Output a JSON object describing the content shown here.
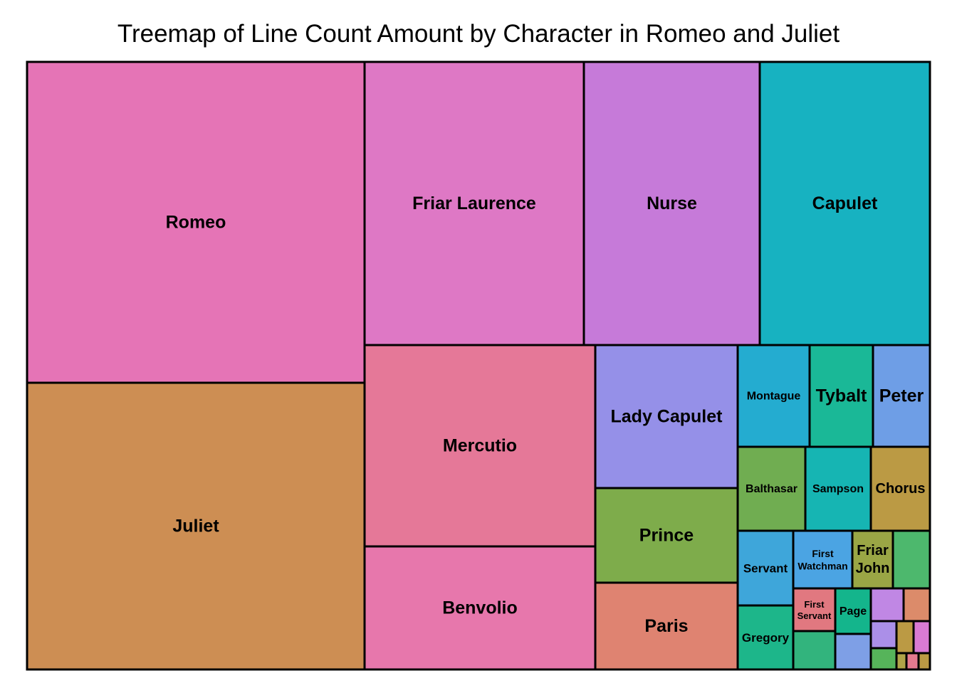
{
  "chart_data": {
    "type": "treemap",
    "title": "Treemap of Line Count Amount by Character in Romeo and Juliet",
    "cells": [
      {
        "name": "Romeo",
        "label": "Romeo",
        "value": 614,
        "color": "#e574b6"
      },
      {
        "name": "Juliet",
        "label": "Juliet",
        "value": 544,
        "color": "#cd8e53"
      },
      {
        "name": "Friar Laurence",
        "label": "Friar Laurence",
        "value": 351,
        "color": "#de78c5"
      },
      {
        "name": "Nurse",
        "label": "Nurse",
        "value": 281,
        "color": "#c67ad9"
      },
      {
        "name": "Capulet",
        "label": "Capulet",
        "value": 274,
        "color": "#17b2c1"
      },
      {
        "name": "Mercutio",
        "label": "Mercutio",
        "value": 261,
        "color": "#e57898"
      },
      {
        "name": "Benvolio",
        "label": "Benvolio",
        "value": 160,
        "color": "#e777ac"
      },
      {
        "name": "Lady Capulet",
        "label": "Lady Capulet",
        "value": 115,
        "color": "#9590e8"
      },
      {
        "name": "Prince",
        "label": "Prince",
        "value": 75,
        "color": "#7eac4b"
      },
      {
        "name": "Paris",
        "label": "Paris",
        "value": 71,
        "color": "#df8371"
      },
      {
        "name": "Montague",
        "label": "Montague",
        "value": 41,
        "color": "#24acd0"
      },
      {
        "name": "Tybalt",
        "label": "Tybalt",
        "value": 36,
        "color": "#1ab897"
      },
      {
        "name": "Peter",
        "label": "Peter",
        "value": 32,
        "color": "#6e9ee6"
      },
      {
        "name": "Balthasar",
        "label": "Balthasar",
        "value": 32,
        "color": "#70ad51"
      },
      {
        "name": "Sampson",
        "label": "Sampson",
        "value": 31,
        "color": "#16b5b3"
      },
      {
        "name": "Chorus",
        "label": "Chorus",
        "value": 28,
        "color": "#bb9a44"
      },
      {
        "name": "Servant",
        "label": "Servant",
        "value": 22,
        "color": "#3ea6da"
      },
      {
        "name": "Gregory",
        "label": "Gregory",
        "value": 20,
        "color": "#1db68a"
      },
      {
        "name": "First Watchman",
        "label": "First Watchman",
        "value": 20,
        "color": "#4ba4e3"
      },
      {
        "name": "Friar John",
        "label": "Friar John",
        "value": 13,
        "color": "#9aa645"
      },
      {
        "name": "small-cell-1",
        "label": "",
        "value": 11,
        "color": "#4db86d"
      },
      {
        "name": "First Servant",
        "label": "First Servant",
        "value": 9,
        "color": "#e17880"
      },
      {
        "name": "Page",
        "label": "Page",
        "value": 9,
        "color": "#14b58c"
      },
      {
        "name": "small-cell-2",
        "label": "",
        "value": 7,
        "color": "#32b47d"
      },
      {
        "name": "small-cell-3",
        "label": "",
        "value": 5,
        "color": "#7e9fe6"
      },
      {
        "name": "small-cell-4",
        "label": "",
        "value": 4,
        "color": "#c087e4"
      },
      {
        "name": "small-cell-5",
        "label": "",
        "value": 3,
        "color": "#dc8b6a"
      },
      {
        "name": "small-cell-6",
        "label": "",
        "value": 3,
        "color": "#ab8fe8"
      },
      {
        "name": "small-cell-7",
        "label": "",
        "value": 2,
        "color": "#56b45a"
      },
      {
        "name": "small-cell-8",
        "label": "",
        "value": 1,
        "color": "#bb9a44"
      },
      {
        "name": "small-cell-9",
        "label": "",
        "value": 1,
        "color": "#d97ad3"
      },
      {
        "name": "small-cell-10",
        "label": "",
        "value": 1,
        "color": "#b0a448"
      },
      {
        "name": "small-cell-11",
        "label": "",
        "value": 1,
        "color": "#e57a8e"
      },
      {
        "name": "small-cell-12",
        "label": "",
        "value": 1,
        "color": "#bb9a44"
      }
    ]
  }
}
